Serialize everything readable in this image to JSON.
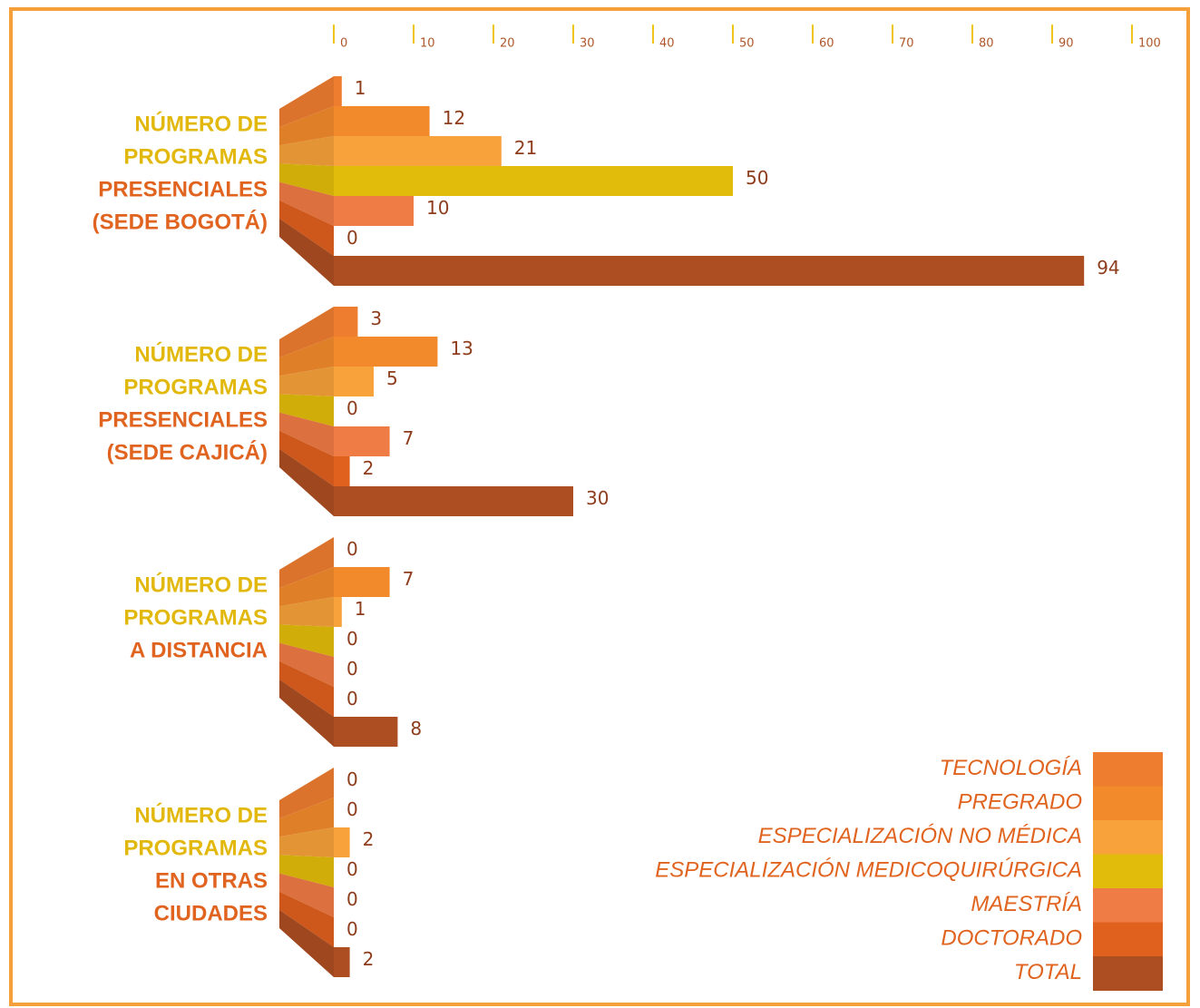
{
  "chart_data": {
    "type": "bar",
    "orientation": "horizontal",
    "categories": [
      [
        "NÚMERO DE",
        "PROGRAMAS",
        "PRESENCIALES",
        "(SEDE BOGOTÁ)"
      ],
      [
        "NÚMERO DE",
        "PROGRAMAS",
        "PRESENCIALES",
        "(SEDE CAJICÁ)"
      ],
      [
        "NÚMERO DE",
        "PROGRAMAS",
        "A DISTANCIA"
      ],
      [
        "NÚMERO DE",
        "PROGRAMAS",
        "EN OTRAS",
        "CIUDADES"
      ]
    ],
    "series": [
      {
        "name": "TECNOLOGÍA",
        "color": "#ee7d30",
        "values": [
          1,
          3,
          0,
          0
        ]
      },
      {
        "name": "PREGRADO",
        "color": "#f28a2c",
        "values": [
          12,
          13,
          7,
          0
        ]
      },
      {
        "name": "ESPECIALIZACIÓN NO MÉDICA",
        "color": "#f7a23a",
        "values": [
          21,
          5,
          1,
          2
        ]
      },
      {
        "name": "ESPECIALIZACIÓN MEDICOQUIRÚRGICA",
        "color": "#e2bc0a",
        "values": [
          50,
          0,
          0,
          0
        ]
      },
      {
        "name": "MAESTRÍA",
        "color": "#ef7b45",
        "values": [
          10,
          7,
          0,
          0
        ]
      },
      {
        "name": "DOCTORADO",
        "color": "#e0601e",
        "values": [
          0,
          2,
          0,
          0
        ]
      },
      {
        "name": "TOTAL",
        "color": "#ad4e22",
        "values": [
          94,
          30,
          8,
          2
        ]
      }
    ],
    "xlim": [
      0,
      100
    ],
    "xticks": [
      0,
      10,
      20,
      30,
      40,
      50,
      60,
      70,
      80,
      90,
      100
    ],
    "legend": "lower right"
  }
}
